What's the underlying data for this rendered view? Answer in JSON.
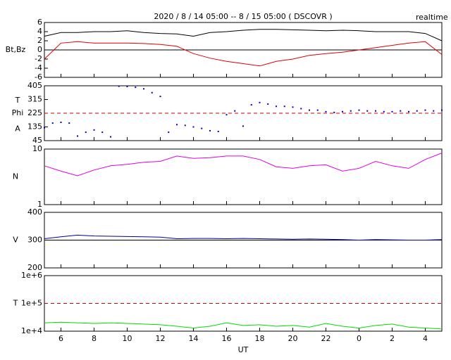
{
  "title": "2020 / 8 / 14   05:00 -- 8 / 15  05:00 ( DSCOVR )",
  "realtime_label": "realtime",
  "x_axis": {
    "label": "UT",
    "xlim": [
      5,
      29
    ],
    "xticks": [
      6,
      8,
      10,
      12,
      14,
      16,
      18,
      20,
      22,
      {
        "value": 24,
        "label": "0"
      },
      {
        "value": 26,
        "label": "2"
      },
      {
        "value": 28,
        "label": "4"
      }
    ]
  },
  "chart_data": [
    {
      "type": "line",
      "ylabel": "Bt,Bz",
      "ylim": [
        -6,
        6
      ],
      "yticks": [
        6,
        4,
        2,
        0,
        -2,
        -4,
        -6
      ],
      "hlines": [
        {
          "value": 0,
          "color": "#000000",
          "dashed": false
        }
      ],
      "x": [
        5,
        6,
        7,
        8,
        9,
        10,
        11,
        12,
        13,
        14,
        15,
        16,
        17,
        18,
        19,
        20,
        21,
        22,
        23,
        24,
        25,
        26,
        27,
        28,
        29
      ],
      "series": [
        {
          "name": "Bt",
          "color": "#000000",
          "values": [
            3,
            3.8,
            3.8,
            4,
            4,
            4.2,
            3.8,
            3.6,
            3.5,
            3,
            3.8,
            4,
            4.3,
            4.5,
            4.5,
            4.4,
            4.3,
            4.2,
            4.3,
            4.2,
            4,
            4,
            4,
            3.6,
            2
          ]
        },
        {
          "name": "Bz",
          "color": "#e00000",
          "values": [
            -2,
            1.5,
            1.8,
            1.5,
            1.5,
            1.5,
            1.4,
            1.2,
            0.8,
            -0.8,
            -1.8,
            -2.5,
            -3,
            -3.5,
            -2.5,
            -2,
            -1.2,
            -0.8,
            -0.5,
            0,
            0.5,
            1,
            1.5,
            1.8,
            -1
          ]
        }
      ]
    },
    {
      "type": "scatter",
      "ylabel": [
        "T",
        "Phi",
        "A"
      ],
      "ylim": [
        45,
        405
      ],
      "yticks": [
        405,
        315,
        225,
        135,
        45
      ],
      "hlines": [
        {
          "value": 225,
          "color": "#cc0000",
          "dashed": true
        }
      ],
      "x": [
        5,
        5.5,
        6,
        6.5,
        7,
        7.5,
        8,
        8.5,
        9,
        9.5,
        10,
        10.5,
        11,
        11.5,
        12,
        12.5,
        13,
        13.5,
        14,
        14.5,
        15,
        15.5,
        16,
        16.5,
        17,
        17.5,
        18,
        18.5,
        19,
        19.5,
        20,
        20.5,
        21,
        21.5,
        22,
        22.5,
        23,
        23.5,
        24,
        24.5,
        25,
        25.5,
        26,
        26.5,
        27,
        27.5,
        28,
        28.5,
        29
      ],
      "series": [
        {
          "name": "Phi",
          "color": "#0000cc",
          "values": [
            130,
            160,
            165,
            160,
            75,
            100,
            115,
            100,
            70,
            402,
            400,
            395,
            385,
            360,
            335,
            100,
            150,
            145,
            135,
            125,
            110,
            105,
            215,
            240,
            140,
            280,
            295,
            285,
            270,
            270,
            265,
            255,
            245,
            245,
            235,
            230,
            235,
            240,
            245,
            240,
            240,
            235,
            235,
            240,
            235,
            240,
            245,
            240,
            245
          ]
        }
      ]
    },
    {
      "type": "line",
      "ylabel": "N",
      "log": true,
      "ylim": [
        1,
        10
      ],
      "yticks": [
        10,
        1
      ],
      "x": [
        5,
        6,
        7,
        8,
        9,
        10,
        11,
        12,
        13,
        14,
        15,
        16,
        17,
        18,
        19,
        20,
        21,
        22,
        23,
        24,
        25,
        26,
        27,
        28,
        29
      ],
      "series": [
        {
          "name": "N",
          "color": "#e000e0",
          "values": [
            5,
            4,
            3.3,
            4.2,
            5,
            5.3,
            5.8,
            6,
            7.5,
            6.8,
            7,
            7.5,
            7.5,
            6.5,
            4.8,
            4.5,
            5,
            5.2,
            4,
            4.5,
            6,
            5,
            4.5,
            6.5,
            8.5
          ]
        }
      ]
    },
    {
      "type": "line",
      "ylabel": "V",
      "ylim": [
        200,
        400
      ],
      "yticks": [
        400,
        300,
        200
      ],
      "hlines": [
        {
          "value": 300,
          "color": "#000000",
          "dashed": false
        }
      ],
      "x": [
        5,
        6,
        7,
        8,
        9,
        10,
        11,
        12,
        13,
        14,
        15,
        16,
        17,
        18,
        19,
        20,
        21,
        22,
        23,
        24,
        25,
        26,
        27,
        28,
        29
      ],
      "series": [
        {
          "name": "V",
          "color": "#000099",
          "values": [
            305,
            312,
            318,
            315,
            314,
            313,
            312,
            311,
            305,
            306,
            306,
            305,
            306,
            305,
            304,
            303,
            304,
            303,
            302,
            300,
            302,
            301,
            300,
            300,
            302
          ]
        }
      ]
    },
    {
      "type": "line",
      "ylabel": "T",
      "log": true,
      "ylim": [
        10000,
        1000000
      ],
      "yticks": [
        {
          "value": 1000000,
          "label": "1e+6"
        },
        {
          "value": 100000,
          "label": "1e+5"
        },
        {
          "value": 10000,
          "label": "1e+4"
        }
      ],
      "hlines": [
        {
          "value": 100000,
          "color": "#cc0000",
          "dashed": true
        }
      ],
      "x": [
        5,
        6,
        7,
        8,
        9,
        10,
        11,
        12,
        13,
        14,
        15,
        16,
        17,
        18,
        19,
        20,
        21,
        22,
        23,
        24,
        25,
        26,
        27,
        28,
        29
      ],
      "series": [
        {
          "name": "T",
          "color": "#00dd00",
          "values": [
            20000,
            21000,
            20000,
            19000,
            20000,
            19000,
            18000,
            17000,
            15000,
            13000,
            15000,
            20000,
            16000,
            17000,
            15000,
            16000,
            14000,
            19000,
            15000,
            13000,
            16000,
            18000,
            14000,
            13000,
            12000
          ]
        }
      ]
    }
  ]
}
